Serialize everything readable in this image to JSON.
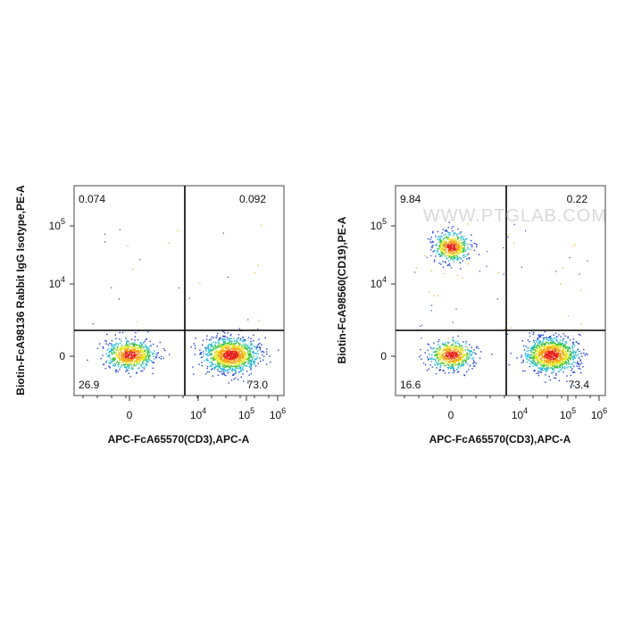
{
  "watermark": "WWW.PTGLAB.COM",
  "plots": [
    {
      "y_label": "Biotin-FcA98136 Rabbit IgG Isotype,PE-A",
      "x_label": "APC-FcA65570(CD3),APC-A",
      "quadrants": {
        "upper_left": "0.074",
        "upper_right": "0.092",
        "lower_left": "26.9",
        "lower_right": "73.0"
      },
      "y_ticks": [
        {
          "base": "0"
        },
        {
          "base": "10",
          "exp": "4"
        },
        {
          "base": "10",
          "exp": "5"
        }
      ],
      "x_ticks": [
        {
          "base": "0"
        },
        {
          "base": "10",
          "exp": "4"
        },
        {
          "base": "10",
          "exp": "5"
        },
        {
          "base": "10",
          "exp": "6"
        }
      ]
    },
    {
      "y_label": "Biotin-FcA98560(CD19),PE-A",
      "x_label": "APC-FcA65570(CD3),APC-A",
      "quadrants": {
        "upper_left": "9.84",
        "upper_right": "0.22",
        "lower_left": "16.6",
        "lower_right": "73.4"
      },
      "y_ticks": [
        {
          "base": "0"
        },
        {
          "base": "10",
          "exp": "4"
        },
        {
          "base": "10",
          "exp": "5"
        }
      ],
      "x_ticks": [
        {
          "base": "0"
        },
        {
          "base": "10",
          "exp": "4"
        },
        {
          "base": "10",
          "exp": "5"
        },
        {
          "base": "10",
          "exp": "6"
        }
      ]
    }
  ]
}
